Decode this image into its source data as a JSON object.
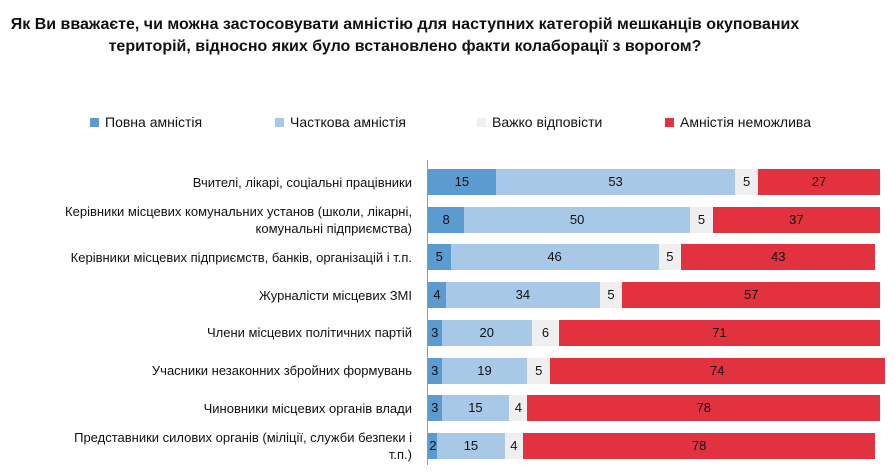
{
  "chart_data": {
    "type": "stacked-bar",
    "title": "Як Ви вважаєте, чи можна застосовувати амністію для наступних категорій мешканців окупованих територій, відносно яких було встановлено факти колаборації з ворогом?",
    "categories": [
      "Вчителі, лікарі, соціальні працівники",
      "Керівники місцевих комунальних установ (школи, лікарні, комунальні підприємства)",
      "Керівники місцевих підприємств, банків, організацій і т.п.",
      "Журналісти місцевих ЗМІ",
      "Члени місцевих політичних партій",
      "Учасники незаконних збройних формувань",
      "Чиновники місцевих органів влади",
      "Представники силових органів (міліції, служби безпеки і т.п.)"
    ],
    "series": [
      {
        "name": "Повна амністія",
        "color": "#5b9bd0",
        "values": [
          15,
          8,
          5,
          4,
          3,
          3,
          3,
          2
        ]
      },
      {
        "name": "Часткова амністія",
        "color": "#a8c8e8",
        "values": [
          53,
          50,
          46,
          34,
          20,
          19,
          15,
          15
        ]
      },
      {
        "name": "Важко відповісти",
        "color": "#efefef",
        "values": [
          5,
          5,
          5,
          5,
          6,
          5,
          4,
          4
        ]
      },
      {
        "name": "Амністія неможлива",
        "color": "#e2313f",
        "values": [
          27,
          37,
          43,
          57,
          71,
          74,
          78,
          78
        ]
      }
    ],
    "xlim": [
      0,
      100
    ]
  }
}
